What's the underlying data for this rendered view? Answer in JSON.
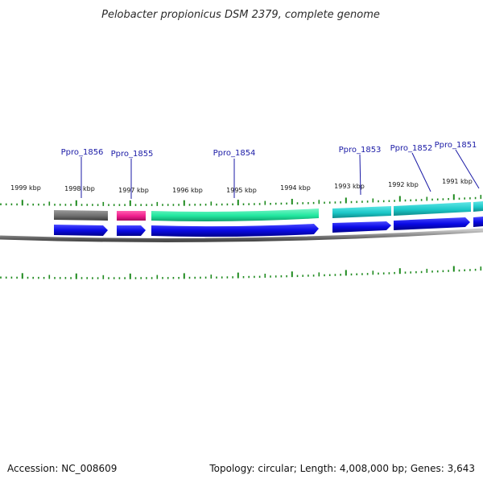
{
  "title": "Pelobacter propionicus DSM 2379, complete genome",
  "footer": {
    "accession": "Accession: NC_008609",
    "summary": "Topology: circular; Length: 4,008,000 bp; Genes: 3,643"
  },
  "colors": {
    "tick": "#1e8a1e",
    "backbone": "#8a8a8a",
    "cds": "#0a0ae6",
    "label": "#1a1aa6"
  },
  "kbp_labels": [
    "1999 kbp",
    "1998 kbp",
    "1997 kbp",
    "1996 kbp",
    "1995 kbp",
    "1994 kbp",
    "1993 kbp",
    "1992 kbp",
    "1991 kbp"
  ],
  "genes": [
    {
      "name": "Ppro_1856",
      "color": "#6e6e6e"
    },
    {
      "name": "Ppro_1855",
      "color": "#ee1c8c"
    },
    {
      "name": "Ppro_1854",
      "color": "#22e8a0"
    },
    {
      "name": "Ppro_1853",
      "color": "#1cc8c8"
    },
    {
      "name": "Ppro_1852",
      "color": "#1cc8c8"
    },
    {
      "name": "Ppro_1851",
      "color": "#1cc8c8"
    }
  ]
}
